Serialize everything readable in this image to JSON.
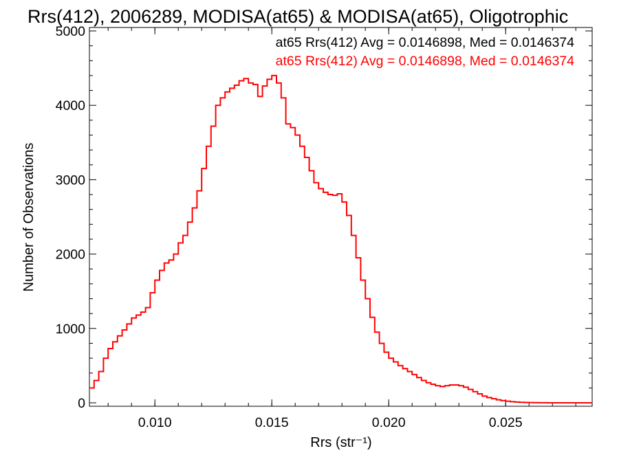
{
  "colors": {
    "black_series": "#000000",
    "red_series": "#ff0000"
  },
  "chart_data": {
    "type": "histogram",
    "title": "Rrs(412), 2006289, MODISA(at65) & MODISA(at65), Oligotrophic",
    "xlabel": "Rrs (str⁻¹)",
    "ylabel": "Number of Observations",
    "xlim": [
      0.0072,
      0.0287
    ],
    "ylim": [
      0,
      5000
    ],
    "xticks": [
      "0.010",
      "0.015",
      "0.020",
      "0.025"
    ],
    "yticks": [
      "0",
      "1000",
      "2000",
      "3000",
      "4000",
      "5000"
    ],
    "annotations": [
      {
        "text": "at65 Rrs(412) Avg = 0.0146898, Med = 0.0146374",
        "color": "#000000"
      },
      {
        "text": "at65 Rrs(412) Avg = 0.0146898, Med = 0.0146374",
        "color": "#ff0000"
      }
    ],
    "series": [
      {
        "color": "#ff0000",
        "points": [
          [
            0.0072,
            200
          ],
          [
            0.0074,
            300
          ],
          [
            0.0076,
            420
          ],
          [
            0.0078,
            600
          ],
          [
            0.008,
            730
          ],
          [
            0.0082,
            820
          ],
          [
            0.0084,
            900
          ],
          [
            0.0086,
            980
          ],
          [
            0.0088,
            1060
          ],
          [
            0.009,
            1140
          ],
          [
            0.0092,
            1180
          ],
          [
            0.0094,
            1220
          ],
          [
            0.0096,
            1280
          ],
          [
            0.0098,
            1480
          ],
          [
            0.01,
            1650
          ],
          [
            0.0102,
            1780
          ],
          [
            0.0104,
            1880
          ],
          [
            0.0106,
            1920
          ],
          [
            0.0108,
            2000
          ],
          [
            0.011,
            2150
          ],
          [
            0.0112,
            2250
          ],
          [
            0.0114,
            2430
          ],
          [
            0.0116,
            2620
          ],
          [
            0.0118,
            2850
          ],
          [
            0.012,
            3150
          ],
          [
            0.0122,
            3450
          ],
          [
            0.0124,
            3720
          ],
          [
            0.0126,
            4000
          ],
          [
            0.0128,
            4100
          ],
          [
            0.013,
            4180
          ],
          [
            0.0132,
            4230
          ],
          [
            0.0134,
            4270
          ],
          [
            0.0136,
            4330
          ],
          [
            0.0138,
            4360
          ],
          [
            0.014,
            4300
          ],
          [
            0.0142,
            4280
          ],
          [
            0.0144,
            4120
          ],
          [
            0.0146,
            4260
          ],
          [
            0.0148,
            4350
          ],
          [
            0.015,
            4400
          ],
          [
            0.0152,
            4300
          ],
          [
            0.0154,
            4100
          ],
          [
            0.0156,
            3750
          ],
          [
            0.0158,
            3700
          ],
          [
            0.016,
            3600
          ],
          [
            0.0162,
            3450
          ],
          [
            0.0164,
            3300
          ],
          [
            0.0166,
            3120
          ],
          [
            0.0168,
            2960
          ],
          [
            0.017,
            2880
          ],
          [
            0.0172,
            2830
          ],
          [
            0.0174,
            2800
          ],
          [
            0.0176,
            2790
          ],
          [
            0.0178,
            2810
          ],
          [
            0.018,
            2700
          ],
          [
            0.0182,
            2520
          ],
          [
            0.0184,
            2250
          ],
          [
            0.0186,
            1950
          ],
          [
            0.0188,
            1650
          ],
          [
            0.019,
            1400
          ],
          [
            0.0192,
            1150
          ],
          [
            0.0194,
            950
          ],
          [
            0.0196,
            800
          ],
          [
            0.0198,
            680
          ],
          [
            0.02,
            600
          ],
          [
            0.0202,
            550
          ],
          [
            0.0204,
            500
          ],
          [
            0.0206,
            460
          ],
          [
            0.0208,
            420
          ],
          [
            0.021,
            380
          ],
          [
            0.0212,
            340
          ],
          [
            0.0214,
            300
          ],
          [
            0.0216,
            270
          ],
          [
            0.0218,
            250
          ],
          [
            0.022,
            230
          ],
          [
            0.0222,
            220
          ],
          [
            0.0224,
            230
          ],
          [
            0.0226,
            240
          ],
          [
            0.0228,
            240
          ],
          [
            0.023,
            230
          ],
          [
            0.0232,
            210
          ],
          [
            0.0234,
            180
          ],
          [
            0.0236,
            150
          ],
          [
            0.0238,
            120
          ],
          [
            0.024,
            90
          ],
          [
            0.0242,
            70
          ],
          [
            0.0244,
            55
          ],
          [
            0.0246,
            40
          ],
          [
            0.0248,
            30
          ],
          [
            0.025,
            22
          ],
          [
            0.0252,
            15
          ],
          [
            0.0254,
            10
          ],
          [
            0.0256,
            7
          ],
          [
            0.0258,
            5
          ],
          [
            0.026,
            3
          ],
          [
            0.0262,
            2
          ],
          [
            0.0264,
            1
          ],
          [
            0.0266,
            1
          ],
          [
            0.0268,
            0
          ],
          [
            0.027,
            0
          ],
          [
            0.0272,
            0
          ],
          [
            0.0274,
            0
          ],
          [
            0.0276,
            0
          ],
          [
            0.0278,
            0
          ],
          [
            0.028,
            0
          ],
          [
            0.0282,
            0
          ],
          [
            0.0284,
            0
          ],
          [
            0.0286,
            0
          ]
        ]
      }
    ]
  }
}
